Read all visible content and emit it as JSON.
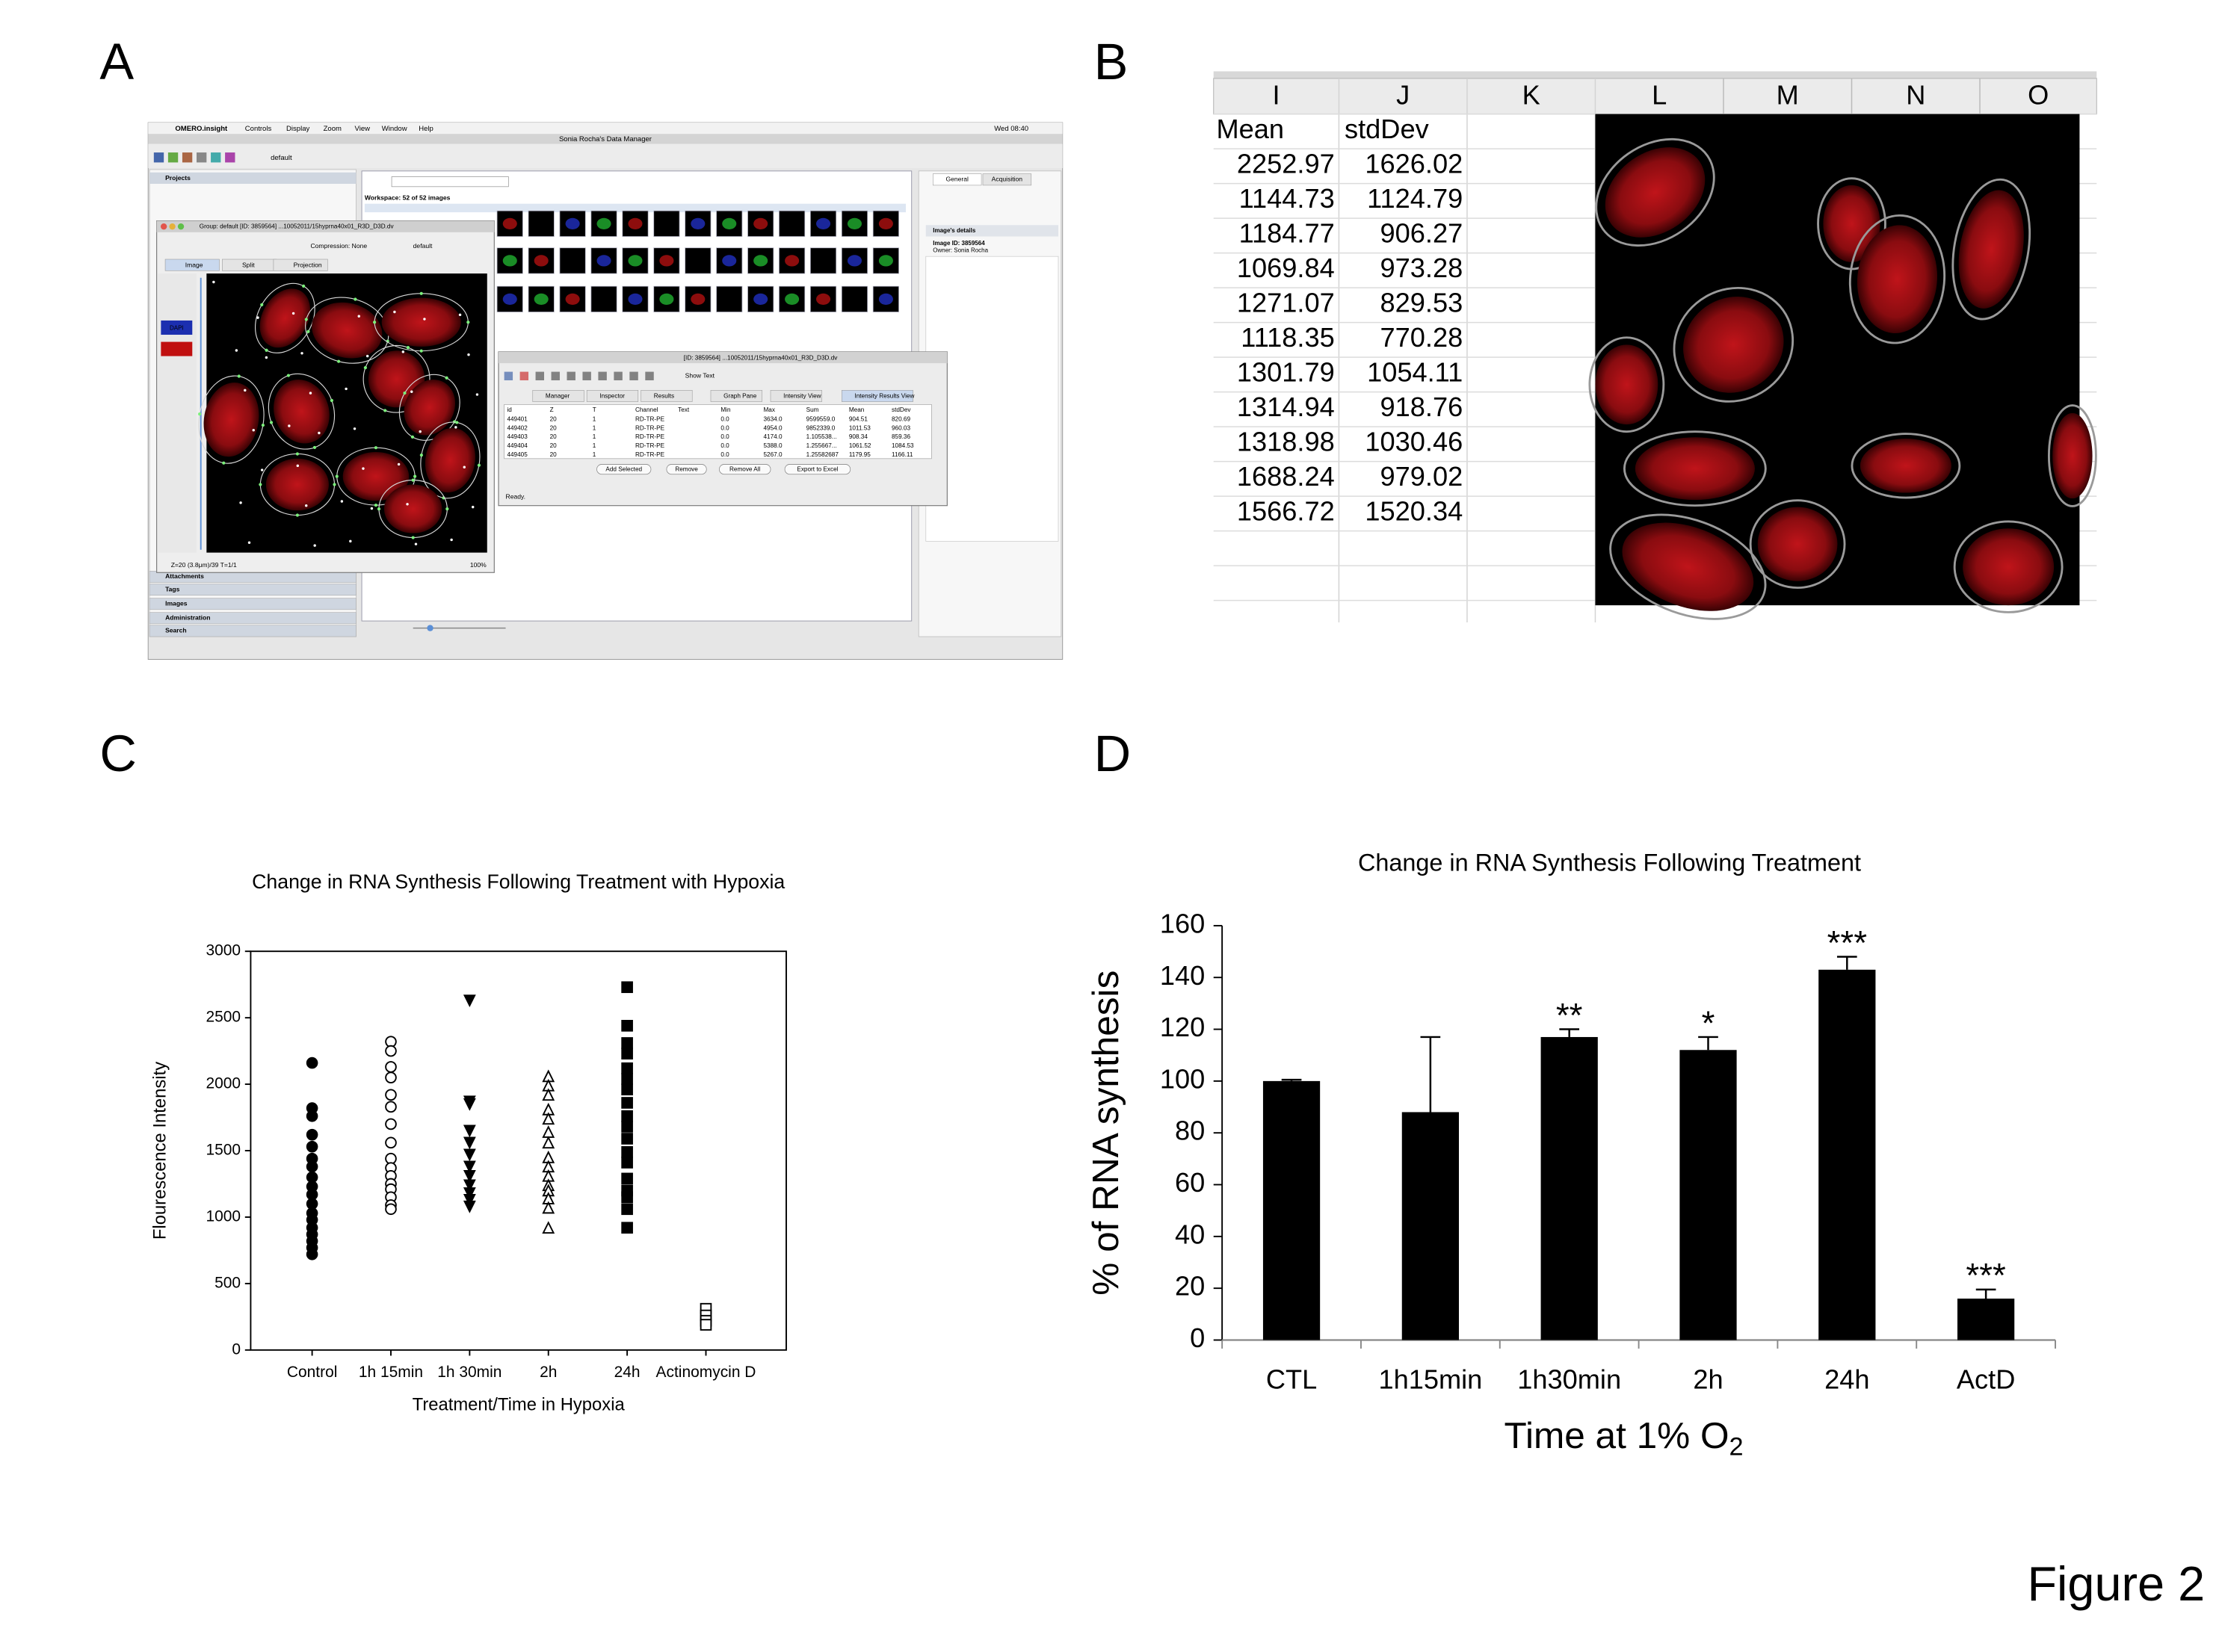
{
  "panel_labels": [
    "A",
    "B",
    "C",
    "D"
  ],
  "figure_label": "Figure 2",
  "panel_a": {
    "app_name": "OMERO.insight",
    "menus": [
      "Controls",
      "Display",
      "Zoom",
      "View",
      "Window",
      "Help"
    ],
    "clock": "Wed 08:40",
    "window_title": "Sonia Rocha's Data Manager",
    "group": "default",
    "left_header": "Projects",
    "left_sections": [
      "Attachments",
      "Tags",
      "Images",
      "Administration",
      "Search"
    ],
    "workspace": "Workspace: 52 of 52 images",
    "right_tabs": [
      "General",
      "Acquisition"
    ],
    "details": [
      "Image's details",
      "Image ID: 3859564",
      "Owner: Sonia Rocha"
    ],
    "viewer_title": "Group: default [ID: 3859564] ...10052011/15hyprna40x01_R3D_D3D.dv",
    "compression": "Compression: None",
    "viewer_tabs": [
      "Image",
      "Split",
      "Projection"
    ],
    "channel": "DAPI",
    "viewer_status": "Z=20 (3.8μm)/39 T=1/1",
    "zoom": "100%",
    "results_title": "[ID: 3859564] ...10052011/15hyprna40x01_R3D_D3D.dv",
    "show_text": "Show Text",
    "results_tabs": [
      "Manager",
      "Inspector",
      "Results",
      "Graph Pane",
      "Intensity View",
      "Intensity Results View"
    ],
    "table": {
      "headers": [
        "id",
        "Z",
        "T",
        "Channel",
        "Text",
        "Min",
        "Max",
        "Sum",
        "Mean",
        "stdDev"
      ],
      "rows": [
        [
          "449401",
          "20",
          "1",
          "RD-TR-PE",
          "0.0",
          "3634.0",
          "9599559.0",
          "904.51",
          "820.69"
        ],
        [
          "449402",
          "20",
          "1",
          "RD-TR-PE",
          "0.0",
          "4954.0",
          "9852339.0",
          "1011.53",
          "960.03"
        ],
        [
          "449403",
          "20",
          "1",
          "RD-TR-PE",
          "0.0",
          "4174.0",
          "1.105538...",
          "908.34",
          "859.36"
        ],
        [
          "449404",
          "20",
          "1",
          "RD-TR-PE",
          "0.0",
          "5388.0",
          "1.255667...",
          "1061.52",
          "1084.53"
        ],
        [
          "449405",
          "20",
          "1",
          "RD-TR-PE",
          "0.0",
          "5267.0",
          "1.25582687",
          "1179.95",
          "1166.11"
        ]
      ]
    },
    "buttons": [
      "Add Selected",
      "Remove",
      "Remove All",
      "Export to Excel"
    ],
    "status": "Ready."
  },
  "panel_b": {
    "columns": [
      "I",
      "J",
      "K",
      "L",
      "M",
      "N",
      "O"
    ],
    "headers": [
      "Mean",
      "stdDev"
    ],
    "rows": [
      [
        2252.97,
        1626.02
      ],
      [
        1144.73,
        1124.79
      ],
      [
        1184.77,
        906.27
      ],
      [
        1069.84,
        973.28
      ],
      [
        1271.07,
        829.53
      ],
      [
        1118.35,
        770.28
      ],
      [
        1301.79,
        1054.11
      ],
      [
        1314.94,
        918.76
      ],
      [
        1318.98,
        1030.46
      ],
      [
        1688.24,
        979.02
      ],
      [
        1566.72,
        1520.34
      ]
    ]
  },
  "chart_data": [
    {
      "type": "scatter",
      "title": "Change in RNA Synthesis Following Treatment with Hypoxia",
      "xlabel": "Treatment/Time in Hypoxia",
      "ylabel": "Flourescence Intensity",
      "categories": [
        "Control",
        "1h 15min",
        "1h 30min",
        "2h",
        "24h",
        "Actinomycin D"
      ],
      "ylim": [
        0,
        3000
      ],
      "yticks": [
        0,
        500,
        1000,
        1500,
        2000,
        2500,
        3000
      ],
      "color": "#000000",
      "series": [
        {
          "marker": "filled-circle",
          "values": [
            2160,
            1820,
            1760,
            1620,
            1530,
            1440,
            1380,
            1300,
            1230,
            1170,
            1100,
            1030,
            980,
            920,
            870,
            820,
            770,
            720
          ]
        },
        {
          "marker": "open-circle",
          "values": [
            2320,
            2250,
            2130,
            2050,
            1920,
            1830,
            1700,
            1560,
            1440,
            1370,
            1310,
            1250,
            1210,
            1150,
            1090,
            1060
          ]
        },
        {
          "marker": "filled-triangle-down",
          "values": [
            2630,
            1870,
            1850,
            1650,
            1560,
            1470,
            1380,
            1310,
            1240,
            1180,
            1130,
            1080
          ]
        },
        {
          "marker": "open-triangle-up",
          "values": [
            2060,
            1990,
            1920,
            1810,
            1740,
            1640,
            1560,
            1450,
            1380,
            1310,
            1240,
            1200,
            1140,
            1070,
            920
          ]
        },
        {
          "marker": "filled-square",
          "values": [
            2730,
            2440,
            2310,
            2230,
            2120,
            2040,
            1960,
            1860,
            1760,
            1680,
            1590,
            1490,
            1410,
            1290,
            1200,
            1150,
            1060,
            920
          ]
        },
        {
          "marker": "open-square",
          "values": [
            310,
            260,
            220,
            190
          ]
        }
      ]
    },
    {
      "type": "bar",
      "title": "Change in RNA Synthesis Following Treatment",
      "xlabel": "Time at 1% O",
      "xlabel_subscript": "2",
      "ylabel": "% of RNA synthesis",
      "categories": [
        "CTL",
        "1h15min",
        "1h30min",
        "2h",
        "24h",
        "ActD"
      ],
      "values": [
        100,
        88,
        117,
        112,
        143,
        16
      ],
      "errors": [
        0.5,
        29,
        3,
        5,
        5,
        3.5
      ],
      "significance": [
        null,
        null,
        "**",
        "*",
        "***",
        "***"
      ],
      "color": "#000000",
      "ylim": [
        0,
        160
      ],
      "yticks": [
        0,
        20,
        40,
        60,
        80,
        100,
        120,
        140,
        160
      ]
    }
  ]
}
